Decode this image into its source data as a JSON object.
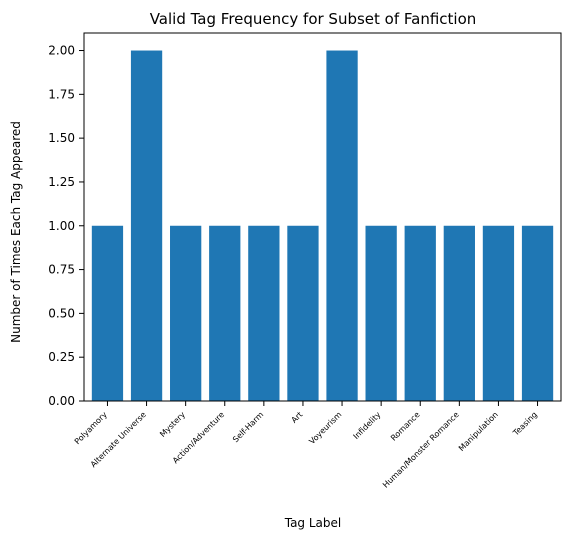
{
  "chart_data": {
    "type": "bar",
    "title": "Valid Tag Frequency for Subset of Fanfiction",
    "xlabel": "Tag Label",
    "ylabel": "Number of Times Each Tag Appeared",
    "categories": [
      "Polyamory",
      "Alternate Universe",
      "Mystery",
      "Action/Adventure",
      "Self-Harm",
      "Art",
      "Voyeurism",
      "Infidelity",
      "Romance",
      "Human/Monster Romance",
      "Manipulation",
      "Teasing"
    ],
    "values": [
      1,
      2,
      1,
      1,
      1,
      1,
      2,
      1,
      1,
      1,
      1,
      1
    ],
    "ylim": [
      0,
      2.1
    ],
    "yticks": [
      "0.00",
      "0.25",
      "0.50",
      "0.75",
      "1.00",
      "1.25",
      "1.50",
      "1.75",
      "2.00"
    ],
    "grid": false,
    "legend": "none",
    "bar_color": "#1f77b4"
  }
}
